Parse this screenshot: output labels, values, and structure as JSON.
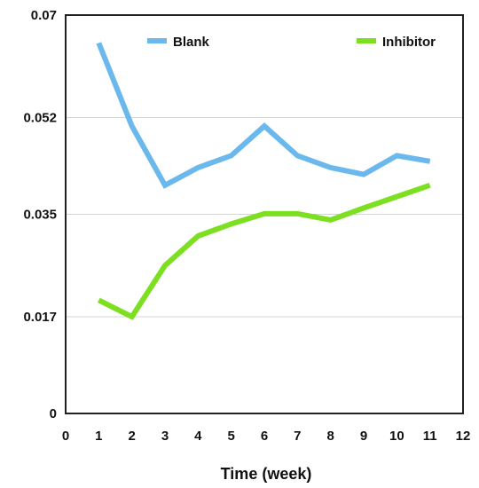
{
  "chart_data": {
    "type": "line",
    "title": "",
    "xlabel": "Time (week)",
    "ylabel": "",
    "xlim": [
      0,
      12
    ],
    "ylim": [
      0,
      0.07
    ],
    "x_ticks": [
      "0",
      "1",
      "2",
      "3",
      "4",
      "5",
      "6",
      "7",
      "8",
      "9",
      "10",
      "11",
      "12"
    ],
    "y_ticks": [
      "0",
      "0.017",
      "0.035",
      "0.052",
      "0.07"
    ],
    "grid": "horizontal",
    "legend_position": "top",
    "x": [
      1,
      2,
      3,
      4,
      5,
      6,
      7,
      8,
      9,
      10,
      11
    ],
    "series": [
      {
        "name": "Blank",
        "color": "#6BB8EC",
        "values": [
          0.0651,
          0.0505,
          0.0401,
          0.0432,
          0.0453,
          0.0505,
          0.0453,
          0.0432,
          0.042,
          0.0453,
          0.0443
        ]
      },
      {
        "name": "Inhibitor",
        "color": "#7CE021",
        "values": [
          0.0199,
          0.017,
          0.026,
          0.0312,
          0.0333,
          0.0351,
          0.0351,
          0.034,
          0.0361,
          0.0381,
          0.0401
        ]
      }
    ]
  }
}
